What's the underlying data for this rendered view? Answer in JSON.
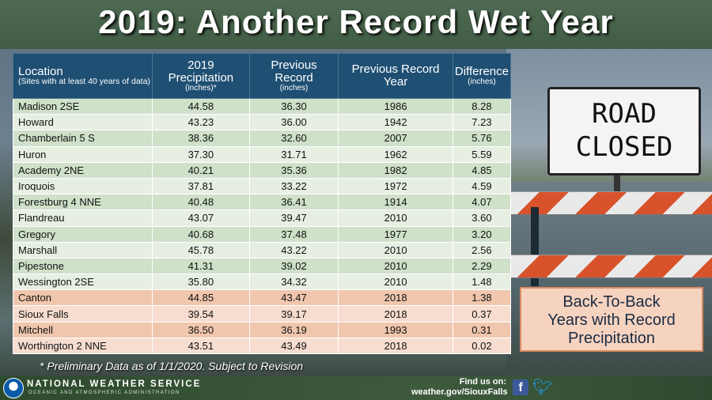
{
  "title": "2019: Another Record Wet Year",
  "table": {
    "headers": [
      {
        "main": "Location",
        "sub": "(Sites with at least 40 years of data)"
      },
      {
        "main": "2019 Precipitation",
        "sub": "(inches)*"
      },
      {
        "main": "Previous Record",
        "sub": "(inches)"
      },
      {
        "main": "Previous Record Year",
        "sub": ""
      },
      {
        "main": "Difference",
        "sub": "(inches)"
      }
    ],
    "rows": [
      {
        "location": "Madison 2SE",
        "precip": "44.58",
        "prev": "36.30",
        "year": "1986",
        "diff": "8.28"
      },
      {
        "location": "Howard",
        "precip": "43.23",
        "prev": "36.00",
        "year": "1942",
        "diff": "7.23"
      },
      {
        "location": "Chamberlain 5 S",
        "precip": "38.36",
        "prev": "32.60",
        "year": "2007",
        "diff": "5.76"
      },
      {
        "location": "Huron",
        "precip": "37.30",
        "prev": "31.71",
        "year": "1962",
        "diff": "5.59"
      },
      {
        "location": "Academy 2NE",
        "precip": "40.21",
        "prev": "35.36",
        "year": "1982",
        "diff": "4.85"
      },
      {
        "location": "Iroquois",
        "precip": "37.81",
        "prev": "33.22",
        "year": "1972",
        "diff": "4.59"
      },
      {
        "location": "Forestburg 4 NNE",
        "precip": "40.48",
        "prev": "36.41",
        "year": "1914",
        "diff": "4.07"
      },
      {
        "location": "Flandreau",
        "precip": "43.07",
        "prev": "39.47",
        "year": "2010",
        "diff": "3.60"
      },
      {
        "location": "Gregory",
        "precip": "40.68",
        "prev": "37.48",
        "year": "1977",
        "diff": "3.20"
      },
      {
        "location": "Marshall",
        "precip": "45.78",
        "prev": "43.22",
        "year": "2010",
        "diff": "2.56"
      },
      {
        "location": "Pipestone",
        "precip": "41.31",
        "prev": "39.02",
        "year": "2010",
        "diff": "2.29"
      },
      {
        "location": "Wessington 2SE",
        "precip": "35.80",
        "prev": "34.32",
        "year": "2010",
        "diff": "1.48"
      },
      {
        "location": "Canton",
        "precip": "44.85",
        "prev": "43.47",
        "year": "2018",
        "diff": "1.38"
      },
      {
        "location": "Sioux Falls",
        "precip": "39.54",
        "prev": "39.17",
        "year": "2018",
        "diff": "0.37"
      },
      {
        "location": "Mitchell",
        "precip": "36.50",
        "prev": "36.19",
        "year": "1993",
        "diff": "0.31"
      },
      {
        "location": "Worthington 2 NNE",
        "precip": "43.51",
        "prev": "43.49",
        "year": "2018",
        "diff": "0.02"
      }
    ],
    "colors": {
      "header": "#1f4f73",
      "green_row": "#cfe1c9",
      "orange_row": "#f0c6ad"
    }
  },
  "footnote": "* Preliminary Data as of 1/1/2020. Subject to Revision",
  "callout": [
    "Back-To-Back",
    "Years with Record",
    "Precipitation"
  ],
  "sign": [
    "ROAD",
    "CLOSED"
  ],
  "footer": {
    "agency": "NATIONAL WEATHER SERVICE",
    "agency_sub": "OCEANIC AND ATMOSPHERIC ADMINISTRATION",
    "find_us": "Find us on:",
    "url": "weather.gov/SiouxFalls",
    "icons": [
      "noaa-logo",
      "facebook-icon",
      "twitter-icon"
    ]
  }
}
